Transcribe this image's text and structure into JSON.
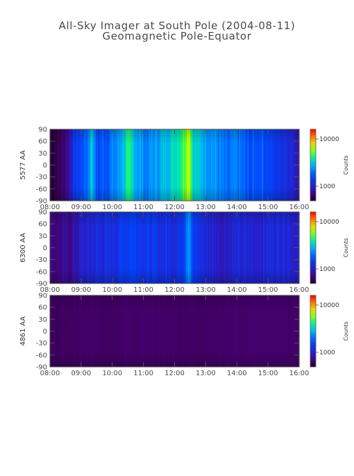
{
  "title": {
    "line1": "All-Sky Imager at South Pole (2004-08-11)",
    "line2": "Geomagnetic Pole-Equator"
  },
  "chart_data": [
    {
      "type": "heatmap",
      "ylabel": "5577 AA",
      "x_tick_labels": [
        "08:00",
        "09:00",
        "10:00",
        "11:00",
        "12:00",
        "13:00",
        "14:00",
        "15:00",
        "16:00"
      ],
      "x_hours": [
        8,
        9,
        10,
        11,
        12,
        13,
        14,
        15,
        16
      ],
      "xlim": [
        8,
        16
      ],
      "y_tick_labels": [
        "90",
        "60",
        "30",
        "0",
        "-30",
        "-60",
        "-90"
      ],
      "y_tick_values": [
        90,
        60,
        30,
        0,
        -30,
        -60,
        -90
      ],
      "ylim": [
        -90,
        90
      ],
      "colorbar": {
        "label": "Counts",
        "tick_labels": [
          "10000",
          "1000"
        ],
        "scale": "log"
      },
      "colormap": "rainbow",
      "grid": false,
      "intensity_profile": [
        {
          "t": 8.0,
          "level": 0.03
        },
        {
          "t": 8.3,
          "level": 0.05
        },
        {
          "t": 8.6,
          "level": 0.15
        },
        {
          "t": 8.8,
          "level": 0.3
        },
        {
          "t": 9.2,
          "level": 0.4
        },
        {
          "t": 9.35,
          "level": 0.55
        },
        {
          "t": 9.5,
          "level": 0.35
        },
        {
          "t": 9.9,
          "level": 0.4
        },
        {
          "t": 10.2,
          "level": 0.45
        },
        {
          "t": 10.5,
          "level": 0.6
        },
        {
          "t": 10.75,
          "level": 0.5
        },
        {
          "t": 11.1,
          "level": 0.42
        },
        {
          "t": 11.5,
          "level": 0.48
        },
        {
          "t": 11.9,
          "level": 0.55
        },
        {
          "t": 12.2,
          "level": 0.62
        },
        {
          "t": 12.47,
          "level": 0.78
        },
        {
          "t": 12.6,
          "level": 0.55
        },
        {
          "t": 12.9,
          "level": 0.5
        },
        {
          "t": 13.3,
          "level": 0.45
        },
        {
          "t": 13.7,
          "level": 0.38
        },
        {
          "t": 14.0,
          "level": 0.42
        },
        {
          "t": 14.4,
          "level": 0.35
        },
        {
          "t": 14.8,
          "level": 0.38
        },
        {
          "t": 15.2,
          "level": 0.3
        },
        {
          "t": 15.6,
          "level": 0.28
        },
        {
          "t": 15.9,
          "level": 0.2
        },
        {
          "t": 16.0,
          "level": 0.18
        }
      ]
    },
    {
      "type": "heatmap",
      "ylabel": "6300 AA",
      "x_tick_labels": [
        "08:00",
        "09:00",
        "10:00",
        "11:00",
        "12:00",
        "13:00",
        "14:00",
        "15:00",
        "16:00"
      ],
      "x_hours": [
        8,
        9,
        10,
        11,
        12,
        13,
        14,
        15,
        16
      ],
      "xlim": [
        8,
        16
      ],
      "y_tick_labels": [
        "90",
        "60",
        "30",
        "0",
        "-30",
        "-60",
        "-90"
      ],
      "y_tick_values": [
        90,
        60,
        30,
        0,
        -30,
        -60,
        -90
      ],
      "ylim": [
        -90,
        90
      ],
      "colorbar": {
        "label": "Counts",
        "tick_labels": [
          "10000",
          "1000"
        ],
        "scale": "log"
      },
      "colormap": "rainbow",
      "grid": false,
      "intensity_profile": [
        {
          "t": 8.0,
          "level": 0.1
        },
        {
          "t": 8.6,
          "level": 0.12
        },
        {
          "t": 9.0,
          "level": 0.2
        },
        {
          "t": 9.5,
          "level": 0.25
        },
        {
          "t": 10.0,
          "level": 0.26
        },
        {
          "t": 10.6,
          "level": 0.34
        },
        {
          "t": 11.0,
          "level": 0.3
        },
        {
          "t": 11.6,
          "level": 0.27
        },
        {
          "t": 12.2,
          "level": 0.28
        },
        {
          "t": 12.47,
          "level": 0.5
        },
        {
          "t": 12.6,
          "level": 0.3
        },
        {
          "t": 13.0,
          "level": 0.24
        },
        {
          "t": 13.5,
          "level": 0.2
        },
        {
          "t": 14.0,
          "level": 0.23
        },
        {
          "t": 14.5,
          "level": 0.22
        },
        {
          "t": 15.0,
          "level": 0.24
        },
        {
          "t": 15.5,
          "level": 0.26
        },
        {
          "t": 16.0,
          "level": 0.2
        }
      ]
    },
    {
      "type": "heatmap",
      "ylabel": "4861 AA",
      "x_tick_labels": [
        "08:00",
        "09:00",
        "10:00",
        "11:00",
        "12:00",
        "13:00",
        "14:00",
        "15:00",
        "16:00"
      ],
      "x_hours": [
        8,
        9,
        10,
        11,
        12,
        13,
        14,
        15,
        16
      ],
      "xlim": [
        8,
        16
      ],
      "y_tick_labels": [
        "90",
        "60",
        "30",
        "0",
        "-30",
        "-60",
        "-90"
      ],
      "y_tick_values": [
        90,
        60,
        30,
        0,
        -30,
        -60,
        -90
      ],
      "ylim": [
        -90,
        90
      ],
      "colorbar": {
        "label": "Counts",
        "tick_labels": [
          "10000",
          "1000"
        ],
        "scale": "log"
      },
      "colormap": "rainbow",
      "grid": false,
      "intensity_profile": [
        {
          "t": 8.0,
          "level": 0.06
        },
        {
          "t": 9.0,
          "level": 0.07
        },
        {
          "t": 10.0,
          "level": 0.07
        },
        {
          "t": 11.0,
          "level": 0.075
        },
        {
          "t": 12.0,
          "level": 0.07
        },
        {
          "t": 13.0,
          "level": 0.07
        },
        {
          "t": 14.0,
          "level": 0.075
        },
        {
          "t": 15.0,
          "level": 0.08
        },
        {
          "t": 16.0,
          "level": 0.075
        }
      ]
    }
  ]
}
